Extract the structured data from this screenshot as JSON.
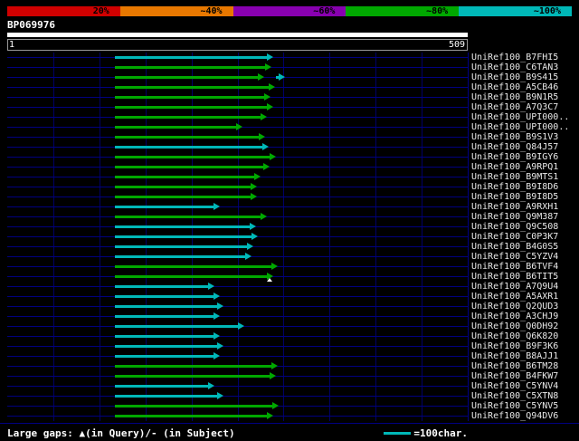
{
  "scalebar": {
    "segments": [
      {
        "label": "20%",
        "color": "#d00000"
      },
      {
        "label": "~40%",
        "color": "#e87800"
      },
      {
        "label": "~60%",
        "color": "#8800b0"
      },
      {
        "label": "~80%",
        "color": "#00a800"
      },
      {
        "label": "~100%",
        "color": "#00b8b8"
      }
    ]
  },
  "query": {
    "name": "BP069976",
    "ruler_start": "1",
    "ruler_end": "509"
  },
  "footer": {
    "gaps_label": "Large gaps: ▲(in Query)/- (in Subject)",
    "legend_label": "=100char.",
    "legend_color": "#00b8b8"
  },
  "chart_data": {
    "type": "bar",
    "orientation": "horizontal",
    "title": "BP069976 query alignment overview vs UniRef100 hits",
    "x_range": [
      1,
      509
    ],
    "grid_divisions": 10,
    "grid_color": "#000066",
    "colors": {
      "green": "#00a800",
      "cyan": "#00b8b8"
    },
    "hits": [
      {
        "label": "UniRef100_B7FHI5",
        "color": "cyan",
        "start": 119,
        "end": 294
      },
      {
        "label": "UniRef100_C6TAN3",
        "color": "green",
        "start": 119,
        "end": 292
      },
      {
        "label": "UniRef100_B9S415",
        "color": "green",
        "start": 119,
        "end": 284,
        "extra": {
          "color": "cyan",
          "start": 297,
          "end": 307
        }
      },
      {
        "label": "UniRef100_A5CB46",
        "color": "green",
        "start": 119,
        "end": 296
      },
      {
        "label": "UniRef100_B9N1R5",
        "color": "green",
        "start": 119,
        "end": 291
      },
      {
        "label": "UniRef100_A7Q3C7",
        "color": "green",
        "start": 119,
        "end": 294
      },
      {
        "label": "UniRef100_UPI000..",
        "color": "green",
        "start": 119,
        "end": 287
      },
      {
        "label": "UniRef100_UPI000..",
        "color": "green",
        "start": 119,
        "end": 260
      },
      {
        "label": "UniRef100_B9S1V3",
        "color": "green",
        "start": 119,
        "end": 285
      },
      {
        "label": "UniRef100_Q84J57",
        "color": "cyan",
        "start": 119,
        "end": 289
      },
      {
        "label": "UniRef100_B9IGY6",
        "color": "green",
        "start": 119,
        "end": 297
      },
      {
        "label": "UniRef100_A9RPQ1",
        "color": "green",
        "start": 119,
        "end": 290
      },
      {
        "label": "UniRef100_B9MTS1",
        "color": "green",
        "start": 119,
        "end": 280
      },
      {
        "label": "UniRef100_B9I8D6",
        "color": "green",
        "start": 119,
        "end": 276
      },
      {
        "label": "UniRef100_B9I8D5",
        "color": "green",
        "start": 119,
        "end": 276
      },
      {
        "label": "UniRef100_A9RXH1",
        "color": "cyan",
        "start": 119,
        "end": 235
      },
      {
        "label": "UniRef100_Q9M387",
        "color": "green",
        "start": 119,
        "end": 287
      },
      {
        "label": "UniRef100_Q9C508",
        "color": "cyan",
        "start": 119,
        "end": 275
      },
      {
        "label": "UniRef100_C0P3K7",
        "color": "cyan",
        "start": 119,
        "end": 277
      },
      {
        "label": "UniRef100_B4G0S5",
        "color": "cyan",
        "start": 119,
        "end": 272
      },
      {
        "label": "UniRef100_C5YZV4",
        "color": "cyan",
        "start": 119,
        "end": 270
      },
      {
        "label": "UniRef100_B6TVF4",
        "color": "green",
        "start": 119,
        "end": 299
      },
      {
        "label": "UniRef100_B6TIT5",
        "color": "green",
        "start": 119,
        "end": 294,
        "gap_marker": 287
      },
      {
        "label": "UniRef100_A7Q9U4",
        "color": "cyan",
        "start": 119,
        "end": 229
      },
      {
        "label": "UniRef100_A5AXR1",
        "color": "cyan",
        "start": 119,
        "end": 235
      },
      {
        "label": "UniRef100_Q2QUD3",
        "color": "cyan",
        "start": 119,
        "end": 239
      },
      {
        "label": "UniRef100_A3CHJ9",
        "color": "cyan",
        "start": 119,
        "end": 235
      },
      {
        "label": "UniRef100_Q0DH92",
        "color": "cyan",
        "start": 119,
        "end": 262
      },
      {
        "label": "UniRef100_Q6K820",
        "color": "cyan",
        "start": 119,
        "end": 235
      },
      {
        "label": "UniRef100_B9F3K6",
        "color": "cyan",
        "start": 119,
        "end": 239
      },
      {
        "label": "UniRef100_B8AJJ1",
        "color": "cyan",
        "start": 119,
        "end": 235
      },
      {
        "label": "UniRef100_B6TM28",
        "color": "green",
        "start": 119,
        "end": 299
      },
      {
        "label": "UniRef100_B4FKW7",
        "color": "green",
        "start": 119,
        "end": 297
      },
      {
        "label": "UniRef100_C5YNV4",
        "color": "cyan",
        "start": 119,
        "end": 229
      },
      {
        "label": "UniRef100_C5XTN8",
        "color": "cyan",
        "start": 119,
        "end": 239
      },
      {
        "label": "UniRef100_C5YNV5",
        "color": "green",
        "start": 119,
        "end": 300
      },
      {
        "label": "UniRef100_Q94DV6",
        "color": "green",
        "start": 119,
        "end": 294
      }
    ]
  }
}
